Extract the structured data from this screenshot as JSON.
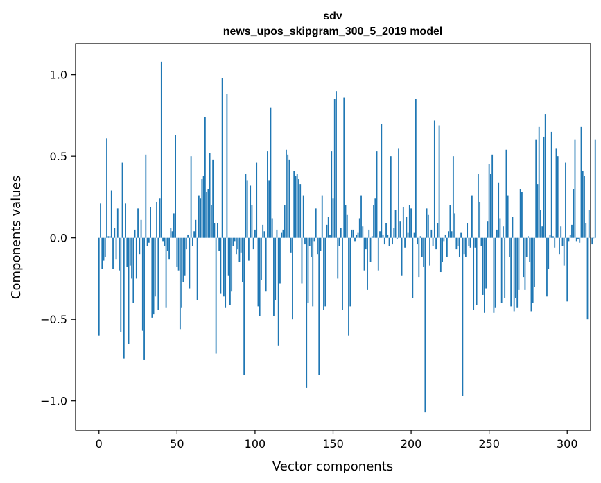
{
  "chart_data": {
    "type": "bar",
    "title": "sdv",
    "subtitle": "news_upos_skipgram_300_5_2019 model",
    "xlabel": "Vector components",
    "ylabel": "Components values",
    "xlim": [
      -15,
      315
    ],
    "ylim": [
      -1.18,
      1.19
    ],
    "x_ticks": [
      0,
      50,
      100,
      150,
      200,
      250,
      300
    ],
    "y_ticks": [
      -1.0,
      -0.5,
      0.0,
      0.5,
      1.0
    ],
    "y_tick_labels": [
      "−1.0",
      "−0.5",
      "0.0",
      "0.5",
      "1.0"
    ],
    "bar_color": "#1f77b4",
    "grid": false,
    "values": [
      -0.6,
      0.21,
      -0.19,
      -0.14,
      -0.12,
      0.61,
      0.01,
      0.01,
      0.29,
      -0.19,
      0.06,
      -0.13,
      0.18,
      -0.2,
      -0.58,
      0.46,
      -0.74,
      0.21,
      -0.18,
      -0.65,
      -0.17,
      -0.25,
      -0.4,
      0.05,
      -0.25,
      0.18,
      -0.1,
      0.11,
      -0.57,
      -0.75,
      0.51,
      -0.05,
      -0.03,
      0.19,
      -0.49,
      -0.47,
      -0.36,
      0.22,
      -0.44,
      0.24,
      1.08,
      -0.02,
      -0.05,
      -0.43,
      -0.08,
      -0.13,
      0.06,
      0.04,
      0.15,
      0.63,
      -0.18,
      -0.2,
      -0.56,
      -0.43,
      -0.27,
      -0.23,
      -0.07,
      0.02,
      -0.31,
      0.5,
      -0.05,
      0.04,
      0.11,
      -0.38,
      0.26,
      0.24,
      0.36,
      0.38,
      0.74,
      0.28,
      0.3,
      0.52,
      0.2,
      0.48,
      0.09,
      -0.71,
      0.09,
      -0.08,
      -0.34,
      0.98,
      -0.36,
      -0.43,
      0.88,
      -0.23,
      -0.41,
      -0.33,
      -0.05,
      -0.02,
      -0.1,
      -0.07,
      -0.15,
      -0.09,
      -0.27,
      -0.84,
      0.39,
      0.35,
      -0.14,
      0.32,
      0.2,
      -0.07,
      0.05,
      0.46,
      -0.42,
      -0.48,
      -0.26,
      0.08,
      0.04,
      -0.33,
      0.53,
      0.35,
      0.8,
      0.12,
      -0.48,
      -0.38,
      0.05,
      -0.66,
      -0.28,
      0.03,
      0.05,
      0.2,
      0.54,
      0.51,
      0.48,
      -0.09,
      -0.5,
      0.41,
      0.38,
      0.39,
      0.36,
      0.33,
      -0.28,
      0.26,
      -0.04,
      -0.92,
      -0.4,
      -0.05,
      -0.12,
      -0.42,
      -0.02,
      0.18,
      -0.1,
      -0.84,
      -0.08,
      0.26,
      -0.44,
      -0.42,
      0.08,
      0.13,
      0.02,
      0.53,
      0.24,
      0.85,
      0.9,
      -0.25,
      -0.05,
      0.06,
      -0.44,
      0.86,
      0.2,
      0.14,
      -0.6,
      -0.42,
      0.05,
      0.05,
      -0.02,
      0.02,
      0.03,
      0.12,
      0.26,
      0.07,
      -0.2,
      -0.07,
      -0.32,
      0.05,
      -0.15,
      0.01,
      0.2,
      0.24,
      0.53,
      -0.2,
      0.04,
      0.7,
      0.02,
      -0.04,
      0.09,
      0.02,
      -0.05,
      0.5,
      -0.04,
      0.06,
      0.17,
      -0.01,
      0.55,
      0.1,
      -0.23,
      0.19,
      -0.06,
      0.13,
      0.03,
      0.2,
      0.18,
      -0.37,
      0.03,
      0.85,
      -0.04,
      -0.24,
      0.01,
      -0.12,
      -0.18,
      -1.07,
      0.18,
      0.14,
      -0.17,
      0.05,
      -0.05,
      0.72,
      -0.07,
      0.09,
      0.69,
      -0.21,
      -0.15,
      -0.02,
      0.02,
      -0.12,
      0.04,
      0.2,
      0.04,
      0.5,
      0.15,
      -0.07,
      -0.05,
      -0.12,
      0.03,
      -0.97,
      -0.1,
      -0.12,
      0.09,
      -0.05,
      -0.06,
      0.26,
      -0.44,
      -0.06,
      -0.41,
      0.39,
      0.22,
      -0.05,
      -0.35,
      -0.46,
      -0.31,
      0.1,
      0.45,
      0.39,
      0.51,
      -0.46,
      -0.43,
      0.05,
      0.34,
      0.12,
      -0.4,
      0.07,
      -0.37,
      0.54,
      0.26,
      -0.12,
      -0.42,
      0.13,
      -0.45,
      -0.37,
      -0.43,
      -0.32,
      0.3,
      0.28,
      -0.24,
      -0.32,
      -0.12,
      0.01,
      -0.15,
      -0.45,
      -0.4,
      -0.3,
      0.6,
      0.33,
      0.68,
      0.17,
      0.07,
      0.62,
      0.76,
      -0.36,
      -0.19,
      0.02,
      0.65,
      0.01,
      -0.06,
      0.55,
      0.5,
      -0.1,
      0.07,
      -0.05,
      -0.17,
      0.46,
      -0.39,
      -0.02,
      0.02,
      0.08,
      0.3,
      0.6,
      -0.02,
      -0.01,
      -0.03,
      0.68,
      0.41,
      0.38,
      0.09,
      -0.5,
      0.17,
      0.0,
      -0.04,
      0.0,
      0.6
    ]
  }
}
